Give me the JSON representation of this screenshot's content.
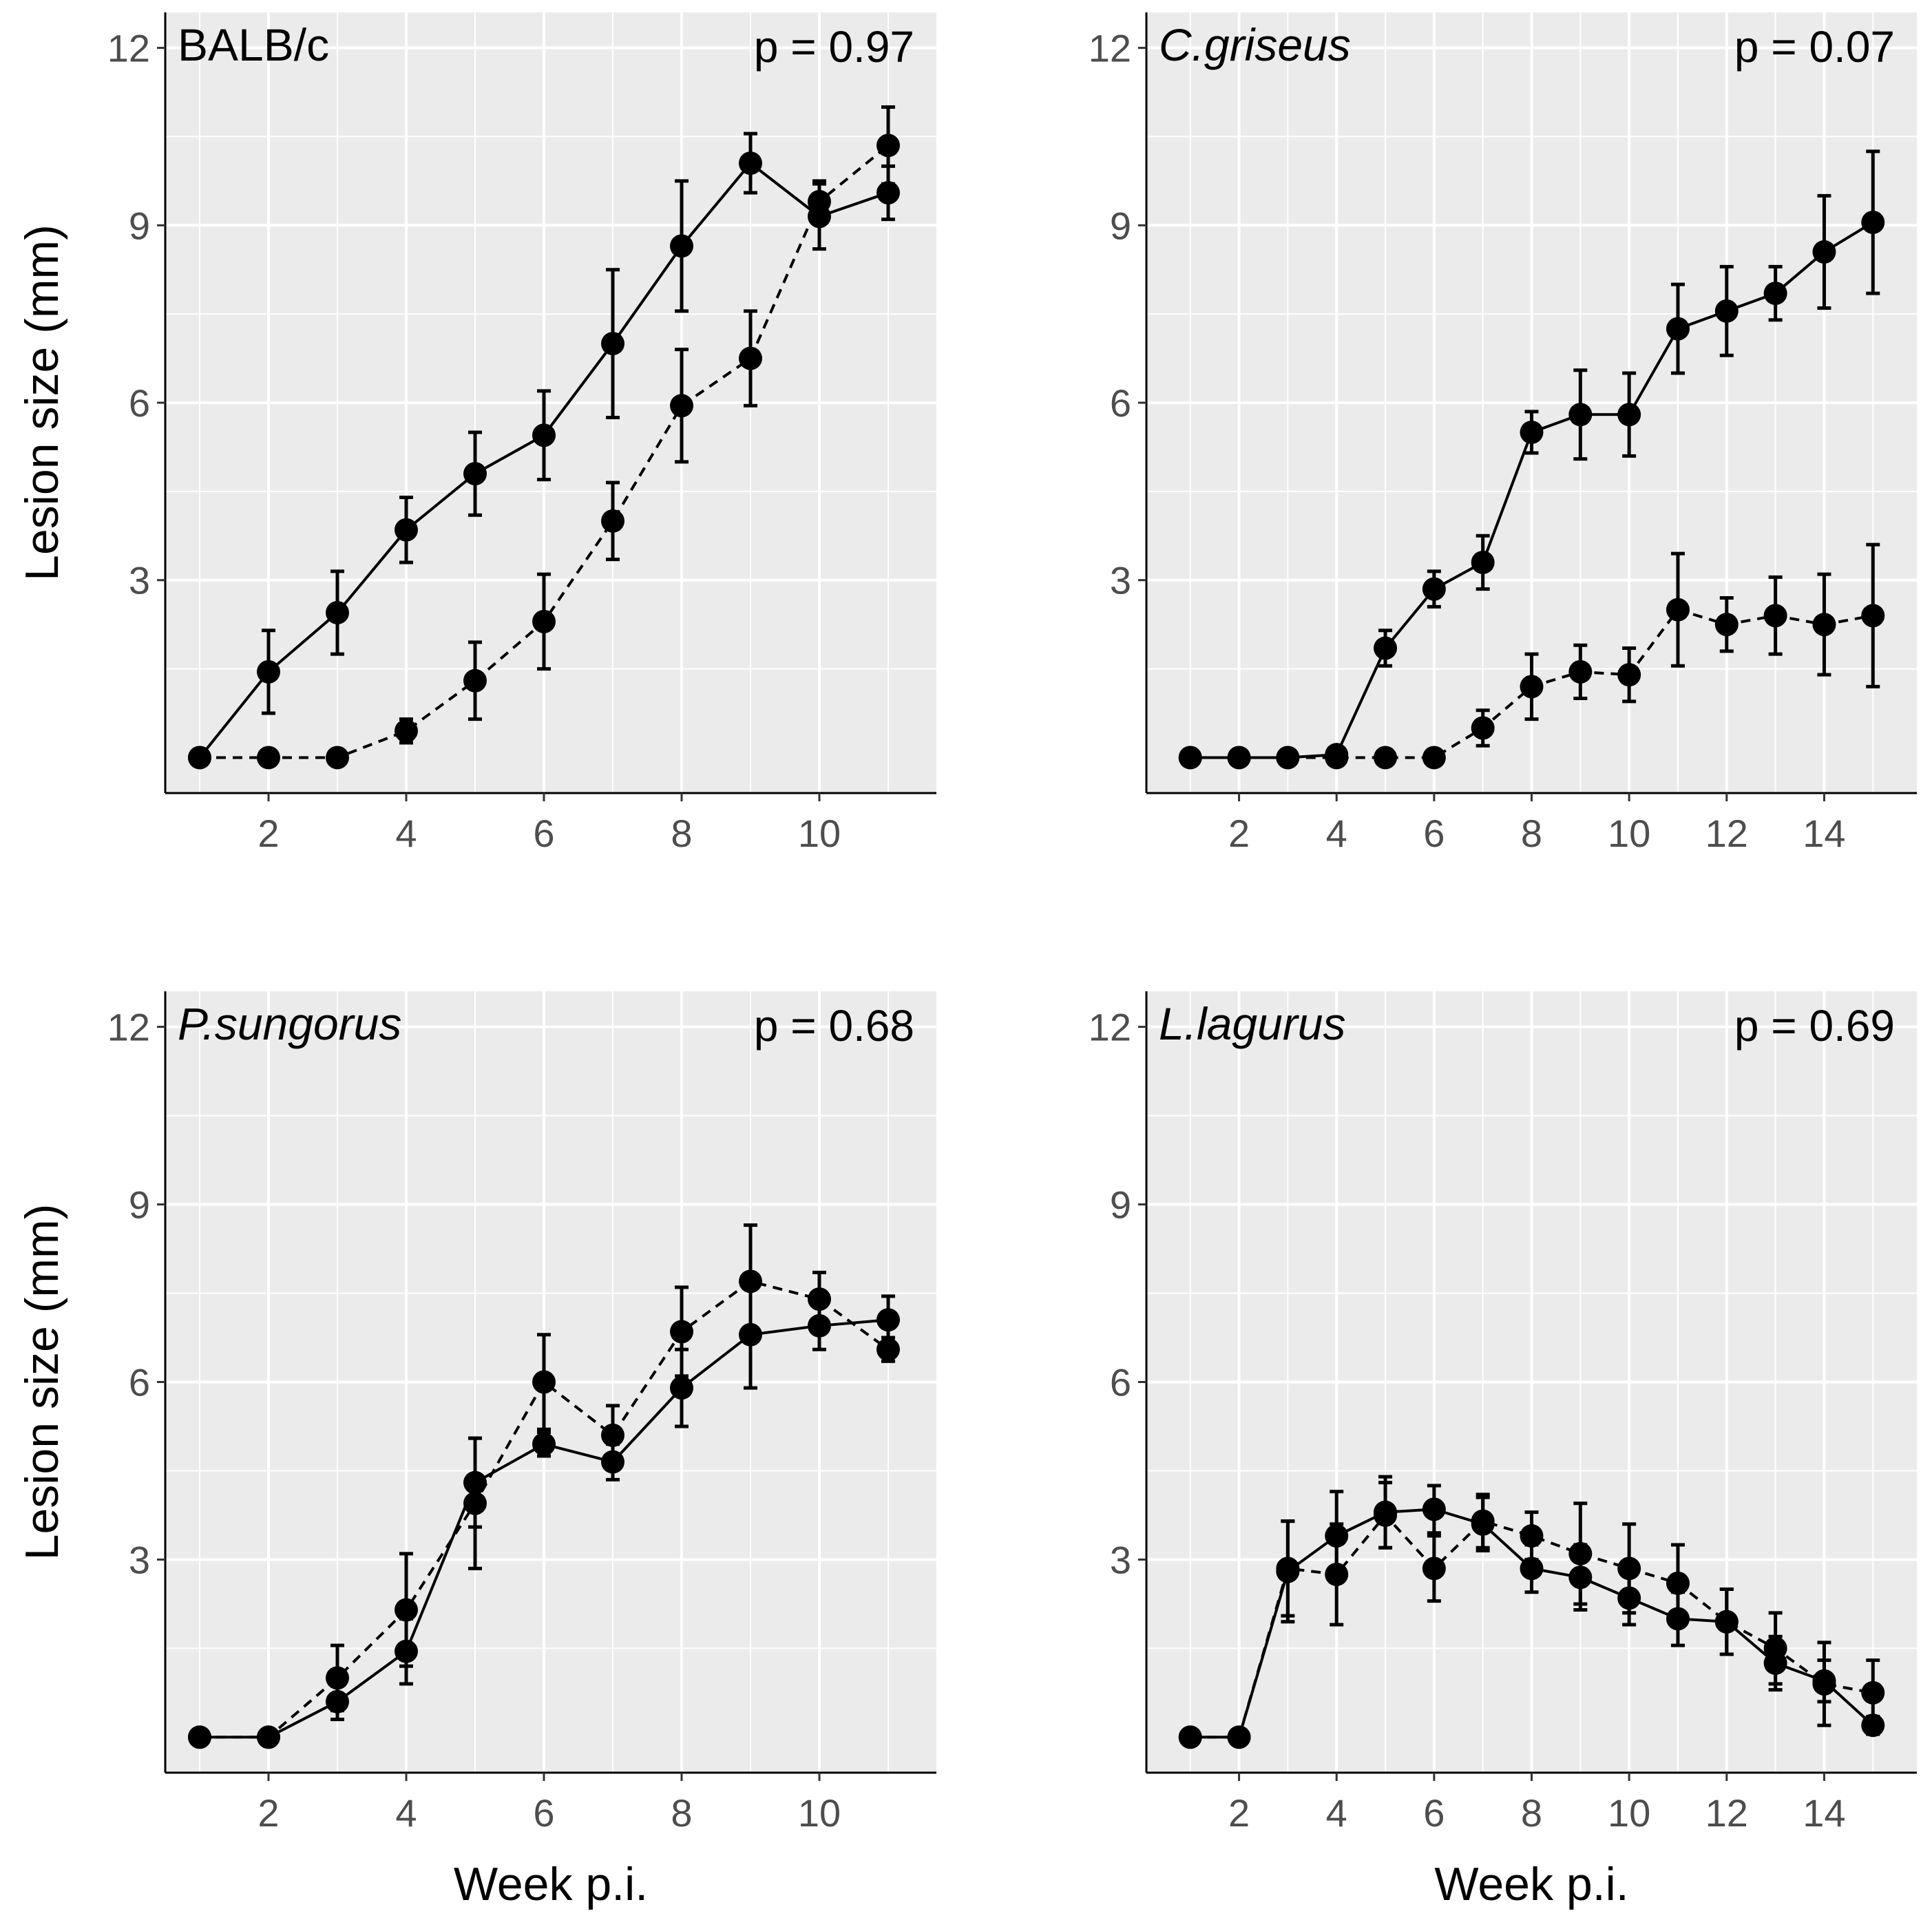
{
  "colors": {
    "panel_background": "#ebebeb",
    "grid": "#ffffff",
    "series": "#000000",
    "tick_text": "#4d4d4d"
  },
  "x_axis_label": "Week p.i.",
  "y_axis_label": "Lesion size (mm)",
  "chart_data": [
    {
      "type": "line",
      "title": "BALB/c",
      "title_italic": false,
      "annotation": "p = 0.97",
      "xlabel": "",
      "ylabel": "Lesion size (mm)",
      "xlim": [
        0.5,
        11.7
      ],
      "ylim": [
        -0.6,
        12.6
      ],
      "xticks": [
        2,
        4,
        6,
        8,
        10
      ],
      "yticks": [
        3,
        6,
        9,
        12
      ],
      "series": [
        {
          "name": "solid",
          "linestyle": "solid",
          "x": [
            1,
            2,
            3,
            4,
            5,
            6,
            7,
            8,
            9,
            10,
            11
          ],
          "y": [
            0,
            1.45,
            2.45,
            3.85,
            4.8,
            5.45,
            7.0,
            8.65,
            10.05,
            9.15,
            9.55
          ],
          "err": [
            0,
            0.7,
            0.7,
            0.55,
            0.7,
            0.75,
            1.25,
            1.1,
            0.5,
            0.55,
            0.45
          ]
        },
        {
          "name": "dashed",
          "linestyle": "dashed",
          "x": [
            1,
            2,
            3,
            4,
            5,
            6,
            7,
            8,
            9,
            10,
            11
          ],
          "y": [
            0,
            0,
            0,
            0.45,
            1.3,
            2.3,
            4.0,
            5.95,
            6.75,
            9.4,
            10.35
          ],
          "err": [
            0,
            0,
            0,
            0.2,
            0.65,
            0.8,
            0.65,
            0.95,
            0.8,
            0.35,
            0.65
          ]
        }
      ]
    },
    {
      "type": "line",
      "title": "C.griseus",
      "title_italic": true,
      "annotation": "p = 0.07",
      "xlabel": "",
      "ylabel": "",
      "xlim": [
        0.1,
        15.9
      ],
      "ylim": [
        -0.6,
        12.6
      ],
      "xticks": [
        2,
        4,
        6,
        8,
        10,
        12,
        14
      ],
      "yticks": [
        3,
        6,
        9,
        12
      ],
      "series": [
        {
          "name": "solid",
          "linestyle": "solid",
          "x": [
            1,
            2,
            3,
            4,
            5,
            6,
            7,
            8,
            9,
            10,
            11,
            12,
            13,
            14,
            15
          ],
          "y": [
            0,
            0,
            0,
            0.05,
            1.85,
            2.85,
            3.3,
            5.5,
            5.8,
            5.8,
            7.25,
            7.55,
            7.85,
            8.55,
            9.05
          ],
          "err": [
            0,
            0,
            0,
            0.05,
            0.3,
            0.3,
            0.45,
            0.35,
            0.75,
            0.7,
            0.75,
            0.75,
            0.45,
            0.95,
            1.2
          ]
        },
        {
          "name": "dashed",
          "linestyle": "dashed",
          "x": [
            1,
            2,
            3,
            4,
            5,
            6,
            7,
            8,
            9,
            10,
            11,
            12,
            13,
            14,
            15
          ],
          "y": [
            0,
            0,
            0,
            0,
            0,
            0,
            0.5,
            1.2,
            1.45,
            1.4,
            2.5,
            2.25,
            2.4,
            2.25,
            2.4
          ],
          "err": [
            0,
            0,
            0,
            0,
            0,
            0,
            0.3,
            0.55,
            0.45,
            0.45,
            0.95,
            0.45,
            0.65,
            0.85,
            1.2
          ]
        }
      ]
    },
    {
      "type": "line",
      "title": "P.sungorus",
      "title_italic": true,
      "annotation": "p = 0.68",
      "xlabel": "Week p.i.",
      "ylabel": "Lesion size (mm)",
      "xlim": [
        0.5,
        11.7
      ],
      "ylim": [
        -0.6,
        12.6
      ],
      "xticks": [
        2,
        4,
        6,
        8,
        10
      ],
      "yticks": [
        3,
        6,
        9,
        12
      ],
      "series": [
        {
          "name": "solid",
          "linestyle": "solid",
          "x": [
            1,
            2,
            3,
            4,
            5,
            6,
            7,
            8,
            9,
            10,
            11
          ],
          "y": [
            0,
            0,
            0.6,
            1.45,
            4.3,
            4.95,
            4.65,
            5.9,
            6.8,
            6.95,
            7.05
          ],
          "err": [
            0,
            0,
            0.3,
            0.55,
            0.75,
            0.2,
            0.3,
            0.65,
            0.9,
            0.4,
            0.4
          ]
        },
        {
          "name": "dashed",
          "linestyle": "dashed",
          "x": [
            1,
            2,
            3,
            4,
            5,
            6,
            7,
            8,
            9,
            10,
            11
          ],
          "y": [
            0,
            0,
            1.0,
            2.15,
            3.95,
            6.0,
            5.1,
            6.85,
            7.7,
            7.4,
            6.55
          ],
          "err": [
            0,
            0,
            0.55,
            0.95,
            1.1,
            0.8,
            0.5,
            0.75,
            0.95,
            0.45,
            0.2
          ]
        }
      ]
    },
    {
      "type": "line",
      "title": "L.lagurus",
      "title_italic": true,
      "annotation": "p = 0.69",
      "xlabel": "Week p.i.",
      "ylabel": "",
      "xlim": [
        0.1,
        15.9
      ],
      "ylim": [
        -0.6,
        12.6
      ],
      "xticks": [
        2,
        4,
        6,
        8,
        10,
        12,
        14
      ],
      "yticks": [
        3,
        6,
        9,
        12
      ],
      "series": [
        {
          "name": "solid",
          "linestyle": "solid",
          "x": [
            1,
            2,
            3,
            4,
            5,
            6,
            7,
            8,
            9,
            10,
            11,
            12,
            13,
            14,
            15
          ],
          "y": [
            0,
            0,
            2.8,
            3.4,
            3.8,
            3.85,
            3.6,
            2.85,
            2.7,
            2.35,
            2.0,
            1.95,
            1.25,
            0.95,
            0.2
          ],
          "err": [
            0,
            0,
            0.85,
            0.75,
            0.6,
            0.4,
            0.45,
            0.4,
            0.55,
            0.45,
            0.45,
            0.55,
            0.45,
            0.35,
            0.15
          ]
        },
        {
          "name": "dashed",
          "linestyle": "dashed",
          "x": [
            1,
            2,
            3,
            4,
            5,
            6,
            7,
            8,
            9,
            10,
            11,
            12,
            13,
            14,
            15
          ],
          "y": [
            0,
            0,
            2.85,
            2.75,
            3.75,
            2.85,
            3.65,
            3.4,
            3.1,
            2.85,
            2.6,
            1.95,
            1.5,
            0.9,
            0.75
          ],
          "err": [
            0,
            0,
            0.8,
            0.85,
            0.55,
            0.55,
            0.45,
            0.4,
            0.85,
            0.75,
            0.65,
            0.55,
            0.6,
            0.7,
            0.55
          ]
        }
      ]
    }
  ]
}
